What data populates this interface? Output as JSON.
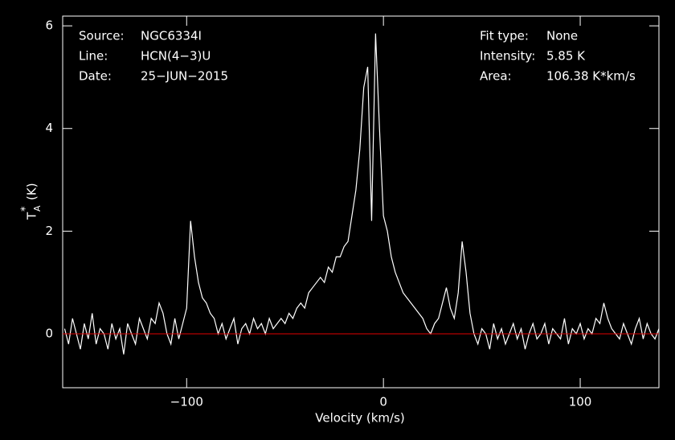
{
  "chart_data": {
    "type": "line",
    "xlabel": "Velocity (km/s)",
    "ylabel": {
      "symbol": "T",
      "subscript": "A",
      "superscript": "*",
      "unit": "(K)"
    },
    "annotations_left": [
      {
        "label": "Source:",
        "value": "NGC6334I"
      },
      {
        "label": "Line:",
        "value": "HCN(4−3)U"
      },
      {
        "label": "Date:",
        "value": "25−JUN−2015"
      }
    ],
    "annotations_right": [
      {
        "label": "Fit type:",
        "value": "None"
      },
      {
        "label": "Intensity:",
        "value": "5.85 K"
      },
      {
        "label": "Area:",
        "value": "106.38 K*km/s"
      }
    ],
    "xlim": [
      -163,
      140
    ],
    "ylim": [
      -1.05,
      6.19
    ],
    "xticks": [
      {
        "value": -100,
        "label": "−100"
      },
      0,
      100
    ],
    "yticks": [
      0,
      2,
      4,
      6
    ],
    "baseline": 0,
    "baseline_color": "#e00000",
    "series": [
      {
        "color": "#ffffff",
        "x": [
          -162,
          -160,
          -158,
          -156,
          -154,
          -152,
          -150,
          -148,
          -146,
          -144,
          -142,
          -140,
          -138,
          -136,
          -134,
          -132,
          -130,
          -128,
          -126,
          -124,
          -122,
          -120,
          -118,
          -116,
          -114,
          -112,
          -110,
          -108,
          -106,
          -104,
          -102,
          -100,
          -98,
          -96,
          -94,
          -92,
          -90,
          -88,
          -86,
          -84,
          -82,
          -80,
          -78,
          -76,
          -74,
          -72,
          -70,
          -68,
          -66,
          -64,
          -62,
          -60,
          -58,
          -56,
          -54,
          -52,
          -50,
          -48,
          -46,
          -44,
          -42,
          -40,
          -38,
          -36,
          -34,
          -32,
          -30,
          -28,
          -26,
          -24,
          -22,
          -20,
          -18,
          -16,
          -14,
          -12,
          -10,
          -8,
          -6,
          -4,
          -2,
          0,
          2,
          4,
          6,
          8,
          10,
          12,
          14,
          16,
          18,
          20,
          22,
          24,
          26,
          28,
          30,
          32,
          34,
          36,
          38,
          40,
          42,
          44,
          46,
          48,
          50,
          52,
          54,
          56,
          58,
          60,
          62,
          64,
          66,
          68,
          70,
          72,
          74,
          76,
          78,
          80,
          82,
          84,
          86,
          88,
          90,
          92,
          94,
          96,
          98,
          100,
          102,
          104,
          106,
          108,
          110,
          112,
          114,
          116,
          118,
          120,
          122,
          124,
          126,
          128,
          130,
          132,
          134,
          136,
          138,
          140
        ],
        "values": [
          0.1,
          -0.2,
          0.3,
          0.0,
          -0.3,
          0.2,
          -0.1,
          0.4,
          -0.2,
          0.1,
          0.0,
          -0.3,
          0.2,
          -0.1,
          0.1,
          -0.4,
          0.2,
          0.0,
          -0.2,
          0.3,
          0.1,
          -0.1,
          0.3,
          0.2,
          0.6,
          0.4,
          0.0,
          -0.2,
          0.3,
          -0.1,
          0.2,
          0.5,
          2.2,
          1.5,
          1.0,
          0.7,
          0.6,
          0.4,
          0.3,
          0.0,
          0.2,
          -0.1,
          0.1,
          0.3,
          -0.2,
          0.1,
          0.2,
          0.0,
          0.3,
          0.1,
          0.2,
          0.0,
          0.3,
          0.1,
          0.2,
          0.3,
          0.2,
          0.4,
          0.3,
          0.5,
          0.6,
          0.5,
          0.8,
          0.9,
          1.0,
          1.1,
          1.0,
          1.3,
          1.2,
          1.5,
          1.5,
          1.7,
          1.8,
          2.3,
          2.8,
          3.6,
          4.8,
          5.2,
          2.2,
          5.85,
          4.0,
          2.3,
          2.0,
          1.5,
          1.2,
          1.0,
          0.8,
          0.7,
          0.6,
          0.5,
          0.4,
          0.3,
          0.1,
          0.0,
          0.2,
          0.3,
          0.6,
          0.9,
          0.5,
          0.3,
          0.8,
          1.8,
          1.2,
          0.4,
          0.0,
          -0.2,
          0.1,
          0.0,
          -0.3,
          0.2,
          -0.1,
          0.1,
          -0.2,
          0.0,
          0.2,
          -0.1,
          0.1,
          -0.3,
          0.0,
          0.2,
          -0.1,
          0.0,
          0.2,
          -0.2,
          0.1,
          0.0,
          -0.1,
          0.3,
          -0.2,
          0.1,
          0.0,
          0.2,
          -0.1,
          0.1,
          0.0,
          0.3,
          0.2,
          0.6,
          0.3,
          0.1,
          0.0,
          -0.1,
          0.2,
          0.0,
          -0.2,
          0.1,
          0.3,
          -0.1,
          0.2,
          0.0,
          -0.1,
          0.1
        ]
      }
    ]
  }
}
